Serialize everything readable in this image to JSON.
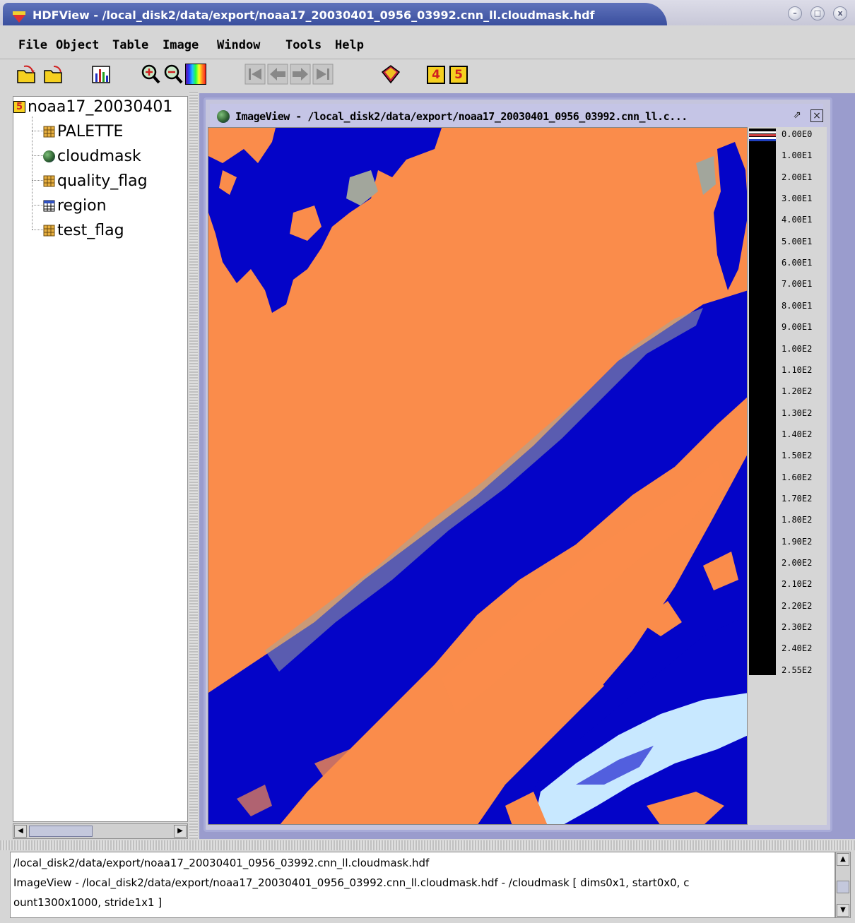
{
  "window": {
    "title": "HDFView - /local_disk2/data/export/noaa17_20030401_0956_03992.cnn_ll.cloudmask.hdf"
  },
  "menubar": {
    "items": [
      "File",
      "Object",
      "Table",
      "Image",
      "Window",
      "Tools",
      "Help"
    ]
  },
  "toolbar": {
    "icons": [
      "open-icon",
      "close-file-icon",
      "histogram-icon",
      "zoom-in-icon",
      "zoom-out-icon",
      "palette-icon",
      "first-icon",
      "previous-icon",
      "next-icon",
      "last-icon",
      "users-guide-icon",
      "hdf4-icon",
      "hdf5-icon"
    ],
    "hdf4_label": "4",
    "hdf5_label": "5"
  },
  "tree": {
    "root": {
      "label": "noaa17_20030401",
      "badge": "5"
    },
    "items": [
      {
        "label": "PALETTE",
        "icon": "dataset-icon"
      },
      {
        "label": "cloudmask",
        "icon": "image-globe-icon"
      },
      {
        "label": "quality_flag",
        "icon": "dataset-icon"
      },
      {
        "label": "region",
        "icon": "table-icon"
      },
      {
        "label": "test_flag",
        "icon": "dataset-icon"
      }
    ]
  },
  "imageview": {
    "title": "ImageView - /local_disk2/data/export/noaa17_20030401_0956_03992.cnn_ll.c..."
  },
  "palette": {
    "ticks": [
      "0.00E0",
      "1.00E1",
      "2.00E1",
      "3.00E1",
      "4.00E1",
      "5.00E1",
      "6.00E1",
      "7.00E1",
      "8.00E1",
      "9.00E1",
      "1.00E2",
      "1.10E2",
      "1.20E2",
      "1.30E2",
      "1.40E2",
      "1.50E2",
      "1.60E2",
      "1.70E2",
      "1.80E2",
      "1.90E2",
      "2.00E2",
      "2.10E2",
      "2.20E2",
      "2.30E2",
      "2.40E2",
      "2.55E2"
    ]
  },
  "colors": {
    "clear": "#fa8c4b",
    "cloud": "#0404c8",
    "partial": "#a2a69c",
    "snow": "#c8e8ff",
    "desktop": "#9a9ccd"
  },
  "status": {
    "lines": [
      "/local_disk2/data/export/noaa17_20030401_0956_03992.cnn_ll.cloudmask.hdf",
      "ImageView - /local_disk2/data/export/noaa17_20030401_0956_03992.cnn_ll.cloudmask.hdf - /cloudmask [ dims0x1, start0x0, c",
      "ount1300x1000, stride1x1 ]"
    ]
  }
}
